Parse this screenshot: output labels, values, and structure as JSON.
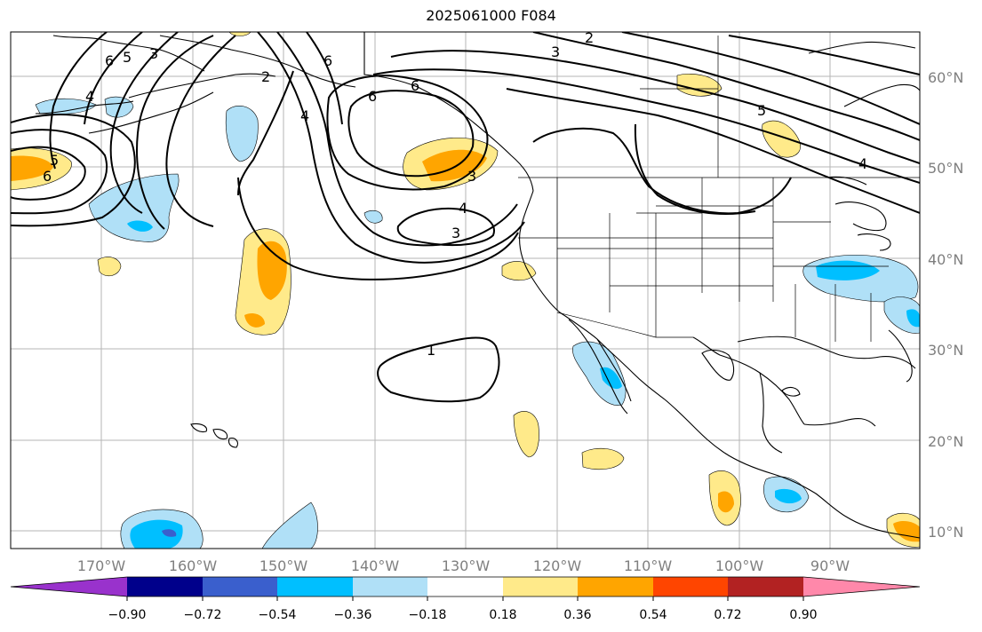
{
  "title": "2025061000 F084",
  "lat_labels": [
    "60°N",
    "50°N",
    "40°N",
    "30°N",
    "20°N",
    "10°N"
  ],
  "lon_labels": [
    "170°W",
    "160°W",
    "150°W",
    "140°W",
    "130°W",
    "120°W",
    "110°W",
    "100°W",
    "90°W"
  ],
  "colorbar": {
    "ticks": [
      "−0.90",
      "−0.72",
      "−0.54",
      "−0.36",
      "−0.18",
      "0.18",
      "0.36",
      "0.54",
      "0.72",
      "0.90"
    ],
    "colors": [
      "#9932cc",
      "#00008b",
      "#3a5fcd",
      "#00bfff",
      "#b0e0f7",
      "#ffffff",
      "#ffea8a",
      "#ffa500",
      "#ff4500",
      "#b22222",
      "#ff88aa"
    ]
  },
  "contour_labels": [
    "6",
    "5",
    "3",
    "4",
    "6",
    "6",
    "2",
    "3",
    "6",
    "4",
    "5",
    "4",
    "4",
    "3",
    "5",
    "6",
    "3",
    "1",
    "2"
  ]
}
